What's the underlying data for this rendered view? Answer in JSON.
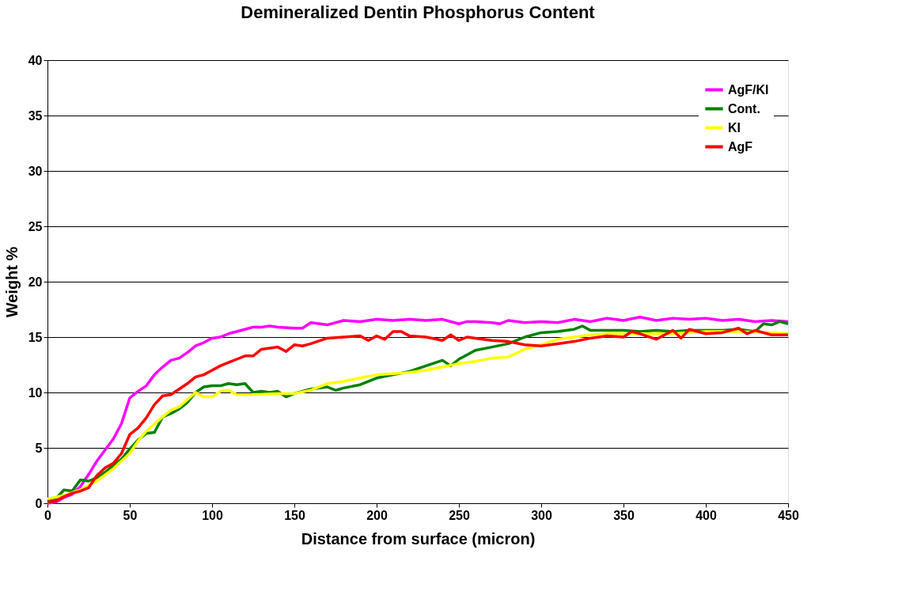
{
  "chart_data": {
    "type": "line",
    "title": "Demineralized Dentin Phosphorus Content",
    "xlabel": "Distance from surface (micron)",
    "ylabel": "Weight %",
    "xlim": [
      0,
      450
    ],
    "xticks": [
      0,
      50,
      100,
      150,
      200,
      250,
      300,
      350,
      400,
      450
    ],
    "ylim": [
      0,
      40
    ],
    "yticks": [
      0,
      5,
      10,
      15,
      20,
      25,
      30,
      35,
      40
    ],
    "grid": "y",
    "legend": "top right",
    "marker": "none",
    "line_style": "solid",
    "series": [
      {
        "name": "AgF/KI",
        "color": "#ff00ff",
        "x": [
          0,
          5,
          10,
          15,
          20,
          25,
          30,
          35,
          40,
          45,
          50,
          55,
          60,
          65,
          70,
          75,
          80,
          85,
          90,
          95,
          100,
          105,
          110,
          115,
          120,
          125,
          130,
          135,
          140,
          150,
          155,
          160,
          170,
          180,
          190,
          200,
          210,
          220,
          230,
          240,
          250,
          255,
          260,
          270,
          275,
          280,
          290,
          300,
          310,
          320,
          330,
          340,
          350,
          360,
          370,
          380,
          390,
          400,
          410,
          420,
          430,
          440,
          450
        ],
        "values": [
          0,
          0.1,
          0.5,
          0.8,
          1.5,
          2.6,
          3.8,
          4.8,
          5.8,
          7.2,
          9.5,
          10.1,
          10.6,
          11.6,
          12.3,
          12.9,
          13.1,
          13.6,
          14.2,
          14.5,
          14.9,
          15.0,
          15.3,
          15.5,
          15.7,
          15.9,
          15.9,
          16.0,
          15.9,
          15.8,
          15.8,
          16.3,
          16.1,
          16.5,
          16.4,
          16.6,
          16.5,
          16.6,
          16.5,
          16.6,
          16.2,
          16.4,
          16.4,
          16.3,
          16.2,
          16.5,
          16.3,
          16.4,
          16.3,
          16.6,
          16.4,
          16.7,
          16.5,
          16.8,
          16.5,
          16.7,
          16.6,
          16.7,
          16.5,
          16.6,
          16.4,
          16.5,
          16.4
        ]
      },
      {
        "name": "Cont.",
        "color": "#008000",
        "x": [
          0,
          5,
          10,
          15,
          20,
          25,
          30,
          35,
          40,
          45,
          50,
          55,
          60,
          65,
          70,
          75,
          80,
          85,
          90,
          95,
          100,
          105,
          110,
          115,
          120,
          125,
          130,
          135,
          140,
          145,
          150,
          160,
          170,
          175,
          180,
          190,
          200,
          210,
          220,
          230,
          240,
          245,
          250,
          260,
          270,
          280,
          290,
          300,
          310,
          320,
          325,
          330,
          340,
          350,
          360,
          370,
          380,
          390,
          400,
          410,
          420,
          430,
          435,
          440,
          445,
          450
        ],
        "values": [
          0.2,
          0.4,
          1.2,
          1.1,
          2.1,
          2.0,
          2.3,
          2.8,
          3.4,
          4.0,
          4.9,
          5.7,
          6.3,
          6.4,
          7.8,
          8.1,
          8.5,
          9.1,
          10.0,
          10.5,
          10.6,
          10.6,
          10.8,
          10.7,
          10.8,
          10.0,
          10.1,
          10.0,
          10.1,
          9.6,
          9.9,
          10.3,
          10.5,
          10.2,
          10.4,
          10.7,
          11.3,
          11.6,
          11.9,
          12.4,
          12.9,
          12.4,
          13.0,
          13.8,
          14.1,
          14.4,
          15.0,
          15.4,
          15.5,
          15.7,
          16.0,
          15.6,
          15.6,
          15.6,
          15.5,
          15.6,
          15.5,
          15.6,
          15.6,
          15.6,
          15.7,
          15.5,
          16.2,
          16.1,
          16.4,
          16.2
        ]
      },
      {
        "name": "KI",
        "color": "#ffff00",
        "x": [
          0,
          10,
          20,
          30,
          40,
          50,
          55,
          60,
          70,
          75,
          80,
          90,
          95,
          100,
          105,
          110,
          115,
          125,
          140,
          150,
          160,
          170,
          180,
          190,
          200,
          210,
          220,
          230,
          240,
          250,
          260,
          270,
          280,
          290,
          300,
          310,
          320,
          330,
          340,
          360,
          380,
          400,
          420,
          440,
          450
        ],
        "values": [
          0.4,
          0.7,
          1.2,
          2.0,
          3.1,
          4.5,
          5.6,
          6.5,
          7.8,
          8.4,
          8.7,
          10.0,
          9.6,
          9.6,
          10.1,
          10.2,
          9.8,
          9.8,
          9.9,
          9.9,
          10.2,
          10.8,
          11.0,
          11.3,
          11.6,
          11.7,
          11.8,
          12.0,
          12.3,
          12.6,
          12.8,
          13.1,
          13.2,
          13.9,
          14.3,
          14.8,
          15.0,
          15.2,
          15.3,
          15.3,
          15.3,
          15.5,
          15.5,
          15.4,
          15.3
        ]
      },
      {
        "name": "AgF",
        "color": "#ff0000",
        "x": [
          0,
          5,
          10,
          15,
          20,
          25,
          30,
          35,
          40,
          45,
          50,
          55,
          60,
          65,
          70,
          75,
          80,
          85,
          90,
          95,
          100,
          105,
          110,
          115,
          120,
          125,
          130,
          135,
          140,
          145,
          150,
          155,
          160,
          170,
          180,
          190,
          195,
          200,
          205,
          210,
          215,
          220,
          230,
          240,
          245,
          250,
          255,
          260,
          270,
          280,
          290,
          300,
          310,
          320,
          330,
          340,
          350,
          355,
          360,
          370,
          380,
          385,
          390,
          400,
          410,
          420,
          425,
          430,
          440,
          450
        ],
        "values": [
          0.1,
          0.2,
          0.6,
          0.9,
          1.1,
          1.4,
          2.5,
          3.2,
          3.6,
          4.5,
          6.2,
          6.8,
          7.7,
          8.9,
          9.7,
          9.8,
          10.3,
          10.8,
          11.4,
          11.6,
          12.0,
          12.4,
          12.7,
          13.0,
          13.3,
          13.3,
          13.9,
          14.0,
          14.1,
          13.7,
          14.3,
          14.2,
          14.4,
          14.9,
          15.0,
          15.1,
          14.7,
          15.1,
          14.8,
          15.5,
          15.5,
          15.1,
          15.0,
          14.7,
          15.2,
          14.7,
          15.0,
          14.9,
          14.7,
          14.6,
          14.3,
          14.2,
          14.4,
          14.6,
          14.9,
          15.1,
          15.0,
          15.5,
          15.3,
          14.8,
          15.6,
          14.9,
          15.7,
          15.3,
          15.4,
          15.8,
          15.3,
          15.6,
          15.2,
          15.2
        ]
      }
    ]
  }
}
